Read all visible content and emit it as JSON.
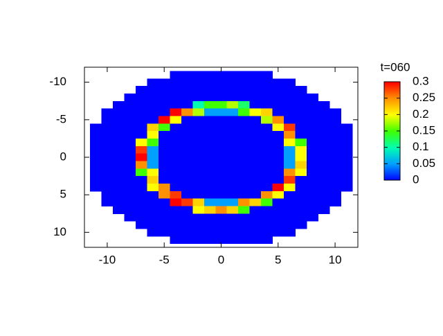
{
  "chart_data": {
    "type": "heatmap",
    "colorbar_title": "t=060",
    "x": [
      -12,
      -11,
      -10,
      -9,
      -8,
      -7,
      -6,
      -5,
      -4,
      -3,
      -2,
      -1,
      0,
      1,
      2,
      3,
      4,
      5,
      6,
      7,
      8,
      9,
      10,
      11,
      12
    ],
    "y": [
      -12,
      -11,
      -10,
      -9,
      -8,
      -7,
      -6,
      -5,
      -4,
      -3,
      -2,
      -1,
      0,
      1,
      2,
      3,
      4,
      5,
      6,
      7,
      8,
      9,
      10,
      11,
      12
    ],
    "z": [
      [
        null,
        null,
        null,
        null,
        null,
        null,
        null,
        null,
        null,
        null,
        null,
        null,
        null,
        null,
        null,
        null,
        null,
        null,
        null,
        null,
        null,
        null,
        null,
        null,
        null
      ],
      [
        null,
        null,
        null,
        null,
        null,
        null,
        null,
        null,
        0,
        0,
        0,
        0,
        0,
        0,
        0,
        0,
        0,
        null,
        null,
        null,
        null,
        null,
        null,
        null,
        null
      ],
      [
        null,
        null,
        null,
        null,
        null,
        null,
        0,
        0,
        0,
        0,
        0,
        0,
        0,
        0,
        0,
        0,
        0,
        0,
        0,
        null,
        null,
        null,
        null,
        null,
        null
      ],
      [
        null,
        null,
        null,
        null,
        null,
        0,
        0,
        0,
        0,
        0,
        0,
        0,
        0,
        0,
        0,
        0,
        0,
        0,
        0,
        0,
        null,
        null,
        null,
        null,
        null
      ],
      [
        null,
        null,
        null,
        null,
        0,
        0,
        0,
        0,
        0,
        0,
        0,
        0,
        0,
        0,
        0,
        0,
        0,
        0,
        0,
        0,
        0,
        null,
        null,
        null,
        null
      ],
      [
        null,
        null,
        null,
        0,
        0,
        0,
        0,
        0,
        0,
        0,
        0.1,
        0.15,
        0.15,
        0.18,
        0.12,
        0,
        0,
        0,
        0,
        0,
        0,
        0,
        null,
        null,
        null
      ],
      [
        null,
        null,
        0,
        0,
        0,
        0,
        0,
        0,
        0.3,
        0.25,
        0.18,
        0.05,
        0.05,
        0.05,
        0.15,
        0.2,
        0.22,
        0,
        0,
        0,
        0,
        0,
        0,
        null,
        null
      ],
      [
        null,
        null,
        0,
        0,
        0,
        0,
        0,
        0.3,
        0.2,
        0,
        0,
        0,
        0,
        0,
        0,
        0,
        0.18,
        0.25,
        0,
        0,
        0,
        0,
        0,
        null,
        null
      ],
      [
        null,
        0,
        0,
        0,
        0,
        0,
        0.22,
        0.15,
        0,
        0,
        0,
        0,
        0,
        0,
        0,
        0,
        0,
        0.2,
        0.28,
        0,
        0,
        0,
        0,
        0,
        null
      ],
      [
        null,
        0,
        0,
        0,
        0,
        0,
        0.2,
        0,
        0,
        0,
        0,
        0,
        0,
        0,
        0,
        0,
        0,
        0,
        0.25,
        0,
        0,
        0,
        0,
        0,
        null
      ],
      [
        null,
        0,
        0,
        0,
        0,
        0.2,
        0.15,
        0,
        0,
        0,
        0,
        0,
        0,
        0,
        0,
        0,
        0,
        0,
        0.2,
        0.15,
        0,
        0,
        0,
        0,
        null
      ],
      [
        null,
        0,
        0,
        0,
        0,
        0.28,
        0.05,
        0,
        0,
        0,
        0,
        0,
        0,
        0,
        0,
        0,
        0,
        0,
        0.05,
        0.2,
        0,
        0,
        0,
        0,
        null
      ],
      [
        null,
        0,
        0,
        0,
        0,
        0.3,
        0.05,
        0,
        0,
        0,
        0,
        0,
        0,
        0,
        0,
        0,
        0,
        0,
        0.05,
        0.2,
        0,
        0,
        0,
        0,
        null
      ],
      [
        null,
        0,
        0,
        0,
        0,
        0.25,
        0.05,
        0,
        0,
        0,
        0,
        0,
        0,
        0,
        0,
        0,
        0,
        0,
        0.05,
        0.22,
        0,
        0,
        0,
        0,
        null
      ],
      [
        null,
        0,
        0,
        0,
        0,
        0.15,
        0.2,
        0,
        0,
        0,
        0,
        0,
        0,
        0,
        0,
        0,
        0,
        0,
        0.25,
        0.2,
        0,
        0,
        0,
        0,
        null
      ],
      [
        null,
        0,
        0,
        0,
        0,
        0,
        0.22,
        0,
        0,
        0,
        0,
        0,
        0,
        0,
        0,
        0,
        0,
        0,
        0.28,
        0,
        0,
        0,
        0,
        0,
        null
      ],
      [
        null,
        0,
        0,
        0,
        0,
        0,
        0.2,
        0.25,
        0,
        0,
        0,
        0,
        0,
        0,
        0,
        0,
        0,
        0.3,
        0.2,
        0,
        0,
        0,
        0,
        0,
        null
      ],
      [
        null,
        null,
        0,
        0,
        0,
        0,
        0,
        0.25,
        0.28,
        0,
        0,
        0,
        0,
        0,
        0,
        0,
        0.25,
        0.2,
        0,
        0,
        0,
        0,
        0,
        null,
        null
      ],
      [
        null,
        null,
        0,
        0,
        0,
        0,
        0,
        0,
        0.3,
        0.28,
        0.22,
        0.05,
        0.05,
        0.05,
        0.25,
        0.22,
        0.15,
        0,
        0,
        0,
        0,
        0,
        0,
        null,
        null
      ],
      [
        null,
        null,
        null,
        0,
        0,
        0,
        0,
        0,
        0,
        0,
        0.2,
        0.22,
        0.25,
        0.22,
        0.15,
        0,
        0,
        0,
        0,
        0,
        0,
        0,
        null,
        null,
        null
      ],
      [
        null,
        null,
        null,
        null,
        0,
        0,
        0,
        0,
        0,
        0,
        0,
        0,
        0,
        0,
        0,
        0,
        0,
        0,
        0,
        0,
        0,
        null,
        null,
        null,
        null
      ],
      [
        null,
        null,
        null,
        null,
        null,
        0,
        0,
        0,
        0,
        0,
        0,
        0,
        0,
        0,
        0,
        0,
        0,
        0,
        0,
        0,
        null,
        null,
        null,
        null,
        null
      ],
      [
        null,
        null,
        null,
        null,
        null,
        null,
        0,
        0,
        0,
        0,
        0,
        0,
        0,
        0,
        0,
        0,
        0,
        0,
        0,
        null,
        null,
        null,
        null,
        null,
        null
      ],
      [
        null,
        null,
        null,
        null,
        null,
        null,
        null,
        null,
        0,
        0,
        0,
        0,
        0,
        0,
        0,
        0,
        0,
        null,
        null,
        null,
        null,
        null,
        null,
        null,
        null
      ],
      [
        null,
        null,
        null,
        null,
        null,
        null,
        null,
        null,
        null,
        null,
        null,
        null,
        null,
        null,
        null,
        null,
        null,
        null,
        null,
        null,
        null,
        null,
        null,
        null,
        null
      ]
    ],
    "xlim": [
      -12,
      12
    ],
    "ylim": [
      -12,
      12
    ],
    "y_reversed": true,
    "xticks": [
      -10,
      -5,
      0,
      5,
      10
    ],
    "yticks": [
      -10,
      -5,
      0,
      5,
      10
    ],
    "cblim": [
      0,
      0.3
    ],
    "cbticks": [
      0,
      0.05,
      0.1,
      0.15,
      0.2,
      0.25,
      0.3
    ],
    "palette": [
      "#0000ff",
      "#00a0ff",
      "#00ffb0",
      "#40ff00",
      "#ffff00",
      "#ff9000",
      "#ff0000"
    ]
  }
}
